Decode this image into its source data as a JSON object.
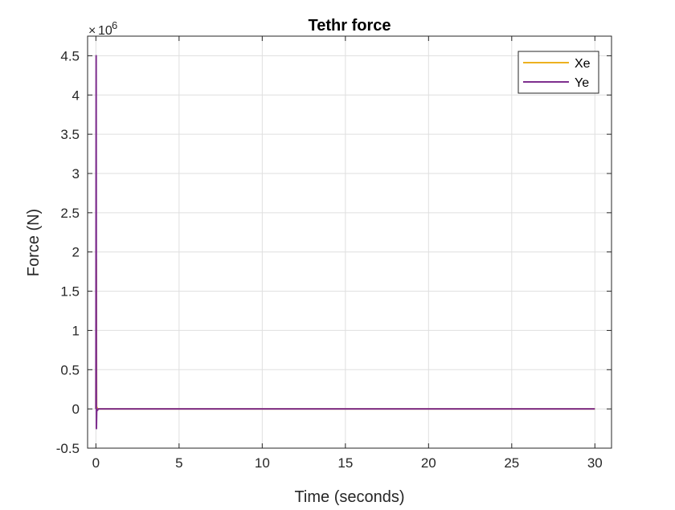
{
  "chart_data": {
    "type": "line",
    "title": "Tethr force",
    "xlabel": "Time (seconds)",
    "ylabel": "Force (N)",
    "xlim": [
      -0.5,
      31
    ],
    "ylim": [
      -0.5,
      4.75
    ],
    "xticks": [
      0,
      5,
      10,
      15,
      20,
      25,
      30
    ],
    "xtick_labels": [
      "0",
      "5",
      "10",
      "15",
      "20",
      "25",
      "30"
    ],
    "yticks": [
      -0.5,
      0,
      0.5,
      1,
      1.5,
      2,
      2.5,
      3,
      3.5,
      4,
      4.5
    ],
    "ytick_labels": [
      "-0.5",
      "0",
      "0.5",
      "1",
      "1.5",
      "2",
      "2.5",
      "3",
      "3.5",
      "4",
      "4.5"
    ],
    "y_exponent_base": "10",
    "y_exponent_power": "6",
    "grid": true,
    "legend_position": "top-right",
    "series": [
      {
        "name": "Xe",
        "color": "#EDB120",
        "x": [
          0,
          0.02,
          0.04,
          0.06,
          0.1,
          0.2,
          1,
          5,
          10,
          15,
          20,
          25,
          30
        ],
        "y": [
          0,
          1.9,
          0.0,
          0.02,
          0,
          0,
          0,
          0,
          0,
          0,
          0,
          0,
          0
        ]
      },
      {
        "name": "Ye",
        "color": "#7E2F8E",
        "x": [
          0,
          0.015,
          0.03,
          0.05,
          0.08,
          0.15,
          1,
          5,
          10,
          15,
          20,
          25,
          30
        ],
        "y": [
          0,
          4.5,
          -0.25,
          0.0,
          -0.02,
          0,
          0,
          0,
          0,
          0,
          0,
          0,
          0
        ]
      }
    ]
  }
}
